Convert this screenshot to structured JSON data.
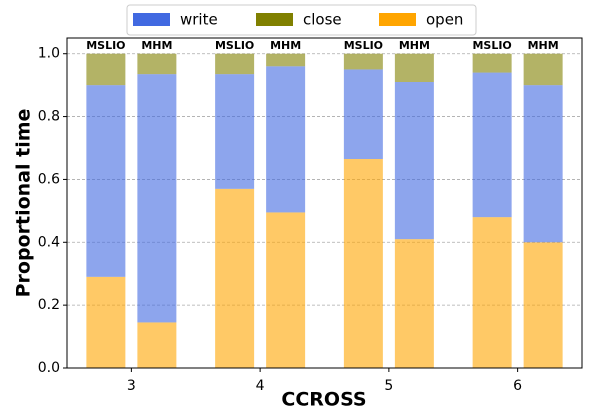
{
  "chart_data": {
    "type": "grouped-stacked-bar",
    "categories": [
      "3",
      "4",
      "5",
      "6"
    ],
    "groups": [
      "MSLIO",
      "MHM"
    ],
    "series": [
      {
        "name": "open",
        "color": "#ffa500",
        "values": [
          [
            0.29,
            0.145
          ],
          [
            0.57,
            0.495
          ],
          [
            0.665,
            0.41
          ],
          [
            0.48,
            0.4
          ]
        ]
      },
      {
        "name": "write",
        "color": "#4169e1",
        "values": [
          [
            0.61,
            0.79
          ],
          [
            0.365,
            0.465
          ],
          [
            0.285,
            0.5
          ],
          [
            0.46,
            0.5
          ]
        ]
      },
      {
        "name": "close",
        "color": "#808000",
        "values": [
          [
            0.1,
            0.065
          ],
          [
            0.065,
            0.04
          ],
          [
            0.05,
            0.09
          ],
          [
            0.06,
            0.1
          ]
        ]
      }
    ],
    "legend_order": [
      "write",
      "close",
      "open"
    ],
    "xlabel": "CCROSS",
    "ylabel": "Proportional time",
    "ylim": [
      0,
      1.05
    ],
    "yticks": [
      {
        "value": 0,
        "label": "0.0"
      },
      {
        "value": 0.2,
        "label": "0.2"
      },
      {
        "value": 0.4,
        "label": "0.4"
      },
      {
        "value": 0.6,
        "label": "0.6"
      },
      {
        "value": 0.8,
        "label": "0.8"
      },
      {
        "value": 1,
        "label": "1.0"
      }
    ],
    "grid": true,
    "legend": "top"
  }
}
